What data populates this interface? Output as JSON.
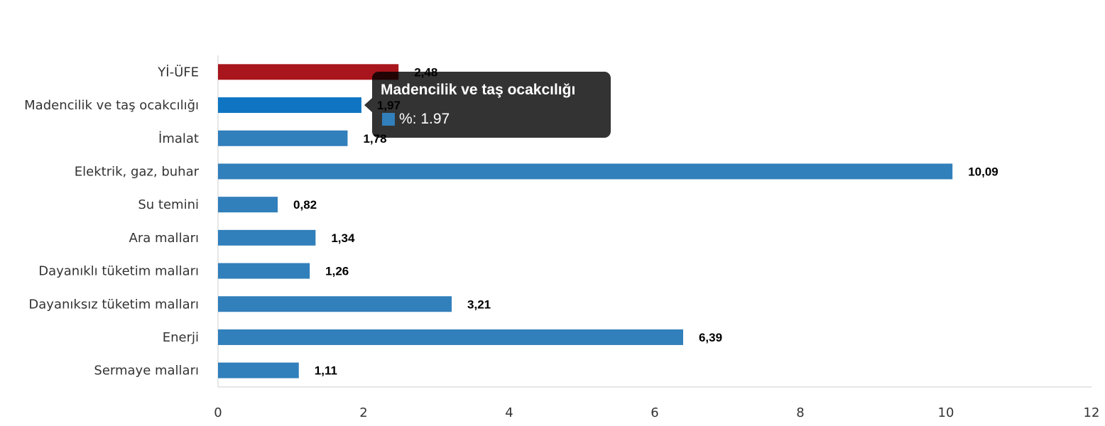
{
  "chart_data": {
    "type": "bar",
    "orientation": "horizontal",
    "categories": [
      "Yİ-ÜFE",
      "Madencilik ve taş ocakcılığı",
      "İmalat",
      "Elektrik, gaz, buhar",
      "Su temini",
      "Ara malları",
      "Dayanıklı tüketim malları",
      "Dayanıksız tüketim malları",
      "Enerji",
      "Sermaye malları"
    ],
    "values": [
      2.48,
      1.97,
      1.78,
      10.09,
      0.82,
      1.34,
      1.26,
      3.21,
      6.39,
      1.11
    ],
    "data_labels": [
      "2,48",
      "1,97",
      "1,78",
      "10,09",
      "0,82",
      "1,34",
      "1,26",
      "3,21",
      "6,39",
      "1,11"
    ],
    "xlim": [
      0,
      12
    ],
    "x_ticks": [
      "0",
      "2",
      "4",
      "6",
      "8",
      "10",
      "12"
    ],
    "grid": false,
    "colors": {
      "default": "#317fbb",
      "highlight_first": "#a8151c",
      "hovered": "#0f75c3"
    },
    "hovered_index": 1,
    "tooltip": {
      "title": "Madencilik ve taş ocakcılığı",
      "series_label": "%",
      "value_text": "1.97",
      "text": "%: 1.97"
    }
  }
}
